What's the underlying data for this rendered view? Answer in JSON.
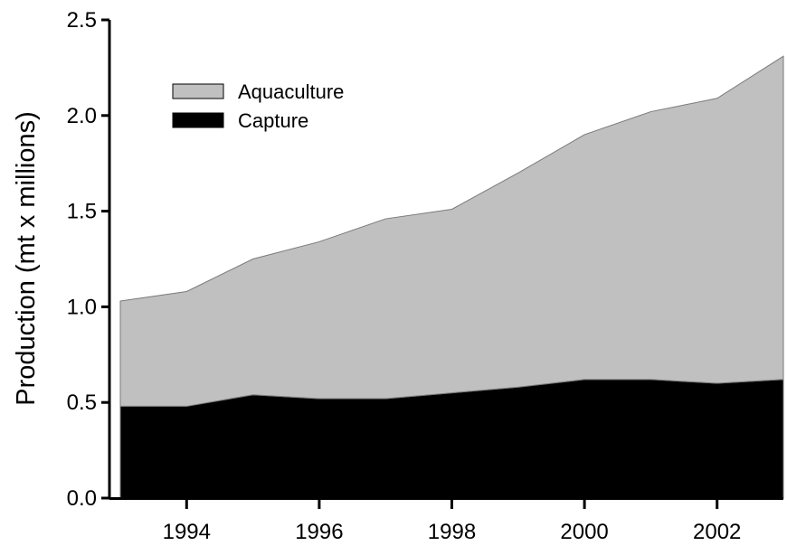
{
  "chart_data": {
    "type": "area",
    "stacked": true,
    "title": "",
    "xlabel": "",
    "ylabel": "Production (mt x millions)",
    "xlim": [
      1993,
      2003
    ],
    "ylim": [
      0,
      2.5
    ],
    "x": [
      1993,
      1994,
      1995,
      1996,
      1997,
      1998,
      1999,
      2000,
      2001,
      2002,
      2003
    ],
    "x_ticks": [
      1994,
      1996,
      1998,
      2000,
      2002
    ],
    "x_tick_labels": [
      "1994",
      "1996",
      "1998",
      "2000",
      "2002"
    ],
    "y_ticks": [
      0.0,
      0.5,
      1.0,
      1.5,
      2.0,
      2.5
    ],
    "y_tick_labels": [
      "0.0",
      "0.5",
      "1.0",
      "1.5",
      "2.0",
      "2.5"
    ],
    "series": [
      {
        "name": "Capture",
        "color": "#000000",
        "values": [
          0.48,
          0.48,
          0.54,
          0.52,
          0.52,
          0.55,
          0.58,
          0.62,
          0.62,
          0.6,
          0.62
        ]
      },
      {
        "name": "Aquaculture",
        "color": "#c0c0c0",
        "values": [
          0.55,
          0.6,
          0.71,
          0.82,
          0.94,
          0.96,
          1.12,
          1.28,
          1.4,
          1.49,
          1.69
        ]
      }
    ],
    "legend_position": "top-left",
    "grid": false
  }
}
